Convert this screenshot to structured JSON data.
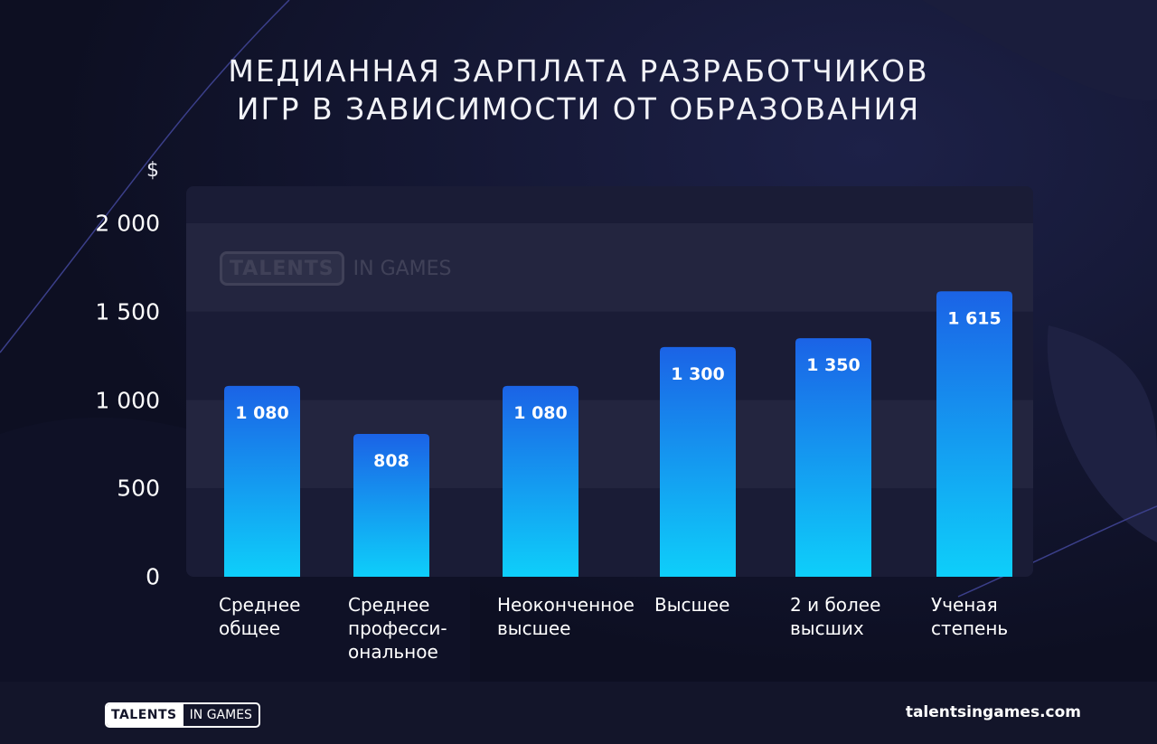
{
  "title": {
    "line1": "МЕДИАННАЯ ЗАРПЛАТА РАЗРАБОТЧИКОВ",
    "line2": "ИГР В ЗАВИСИМОСТИ ОТ ОБРАЗОВАНИЯ"
  },
  "watermark": {
    "box": "TALENTS",
    "text": "IN GAMES"
  },
  "footer": {
    "logo_box": "TALENTS",
    "logo_text": "IN GAMES",
    "site": "talentsingames.com"
  },
  "colors": {
    "background": "#12142a",
    "bar_top": "#1b63e6",
    "bar_bottom": "#0ecffa",
    "plot_band_dark": "#1a1c36",
    "plot_band_light": "#23253f"
  },
  "chart_data": {
    "type": "bar",
    "title": "МЕДИАННАЯ ЗАРПЛАТА РАЗРАБОТЧИКОВ ИГР В ЗАВИСИМОСТИ ОТ ОБРАЗОВАНИЯ",
    "ylabel": "$",
    "ylim": [
      0,
      2000
    ],
    "grid": "alternating bands",
    "yticks": [
      "0",
      "500",
      "1 000",
      "1 500",
      "2 000"
    ],
    "ytick_values": [
      0,
      500,
      1000,
      1500,
      2000
    ],
    "categories": [
      "Среднее\nобщее",
      "Среднее\nпрофесси-\nональное",
      "Неоконченное\nвысшее",
      "Высшее",
      "2 и более\nвысших",
      "Ученая\nстепень"
    ],
    "values": [
      1080,
      808,
      1080,
      1300,
      1350,
      1615
    ],
    "value_labels": [
      "1 080",
      "808",
      "1 080",
      "1 300",
      "1 350",
      "1 615"
    ]
  }
}
